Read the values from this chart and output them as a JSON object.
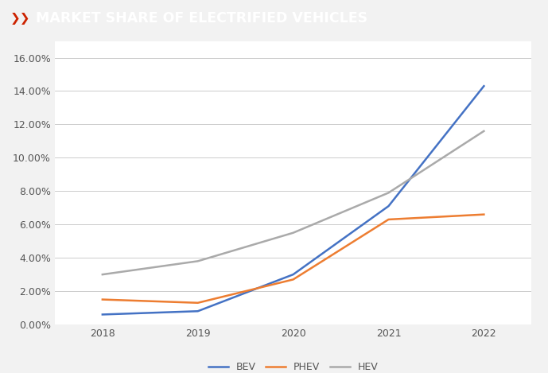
{
  "title": "MARKET SHARE OF ELECTRIFIED VEHICLES",
  "title_icon": "»",
  "years": [
    2018,
    2019,
    2020,
    2021,
    2022
  ],
  "bev": [
    0.006,
    0.008,
    0.03,
    0.071,
    0.143
  ],
  "phev": [
    0.015,
    0.013,
    0.027,
    0.063,
    0.066
  ],
  "hev": [
    0.03,
    0.038,
    0.055,
    0.079,
    0.116
  ],
  "bev_color": "#4472c4",
  "phev_color": "#ed7d31",
  "hev_color": "#aaaaaa",
  "ylim": [
    0,
    0.17
  ],
  "yticks": [
    0.0,
    0.02,
    0.04,
    0.06,
    0.08,
    0.1,
    0.12,
    0.14,
    0.16
  ],
  "ytick_labels": [
    "0.00%",
    "2.00%",
    "4.00%",
    "6.00%",
    "8.00%",
    "10.00%",
    "12.00%",
    "14.00%",
    "16.00%"
  ],
  "header_bg": "#333333",
  "plot_bg": "#f2f2f2",
  "chart_bg": "#ffffff",
  "line_width": 1.8,
  "legend_labels": [
    "BEV",
    "PHEV",
    "HEV"
  ]
}
